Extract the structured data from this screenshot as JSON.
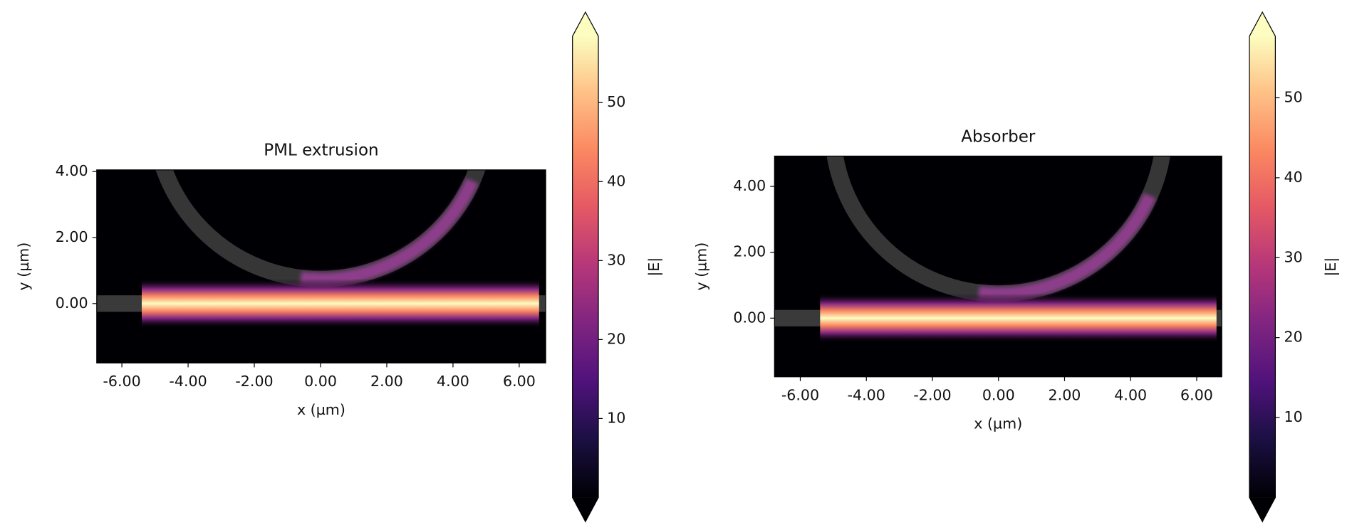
{
  "chart_data": [
    {
      "type": "heatmap",
      "title": "PML extrusion",
      "xlabel": "x (µm)",
      "ylabel": "y (µm)",
      "xlim": [
        -6.76,
        6.8
      ],
      "ylim": [
        -1.8,
        4.05
      ],
      "xticks": [
        {
          "value": -6,
          "label": "-6.00"
        },
        {
          "value": -4,
          "label": "-4.00"
        },
        {
          "value": -2,
          "label": "-2.00"
        },
        {
          "value": 0,
          "label": "0.00"
        },
        {
          "value": 2,
          "label": "2.00"
        },
        {
          "value": 4,
          "label": "4.00"
        },
        {
          "value": 6,
          "label": "6.00"
        }
      ],
      "yticks": [
        {
          "value": 0,
          "label": "0.00"
        },
        {
          "value": 2,
          "label": "2.00"
        },
        {
          "value": 4,
          "label": "4.00"
        }
      ],
      "colorbar_label": "|E|",
      "clim": [
        0,
        58.4
      ],
      "cticks": [
        10,
        20,
        30,
        40,
        50
      ],
      "colormap": "magma"
    },
    {
      "type": "heatmap",
      "title": "Absorber",
      "xlabel": "x (µm)",
      "ylabel": "y (µm)",
      "xlim": [
        -6.78,
        6.76
      ],
      "ylim": [
        -1.78,
        4.92
      ],
      "xticks": [
        {
          "value": -6,
          "label": "-6.00"
        },
        {
          "value": -4,
          "label": "-4.00"
        },
        {
          "value": -2,
          "label": "-2.00"
        },
        {
          "value": 0,
          "label": "0.00"
        },
        {
          "value": 2,
          "label": "2.00"
        },
        {
          "value": 4,
          "label": "4.00"
        },
        {
          "value": 6,
          "label": "6.00"
        }
      ],
      "yticks": [
        {
          "value": 0,
          "label": "0.00"
        },
        {
          "value": 2,
          "label": "2.00"
        },
        {
          "value": 4,
          "label": "4.00"
        }
      ],
      "colorbar_label": "|E|",
      "clim": [
        0,
        57.7
      ],
      "cticks": [
        10,
        20,
        30,
        40,
        50
      ],
      "colormap": "magma"
    }
  ]
}
